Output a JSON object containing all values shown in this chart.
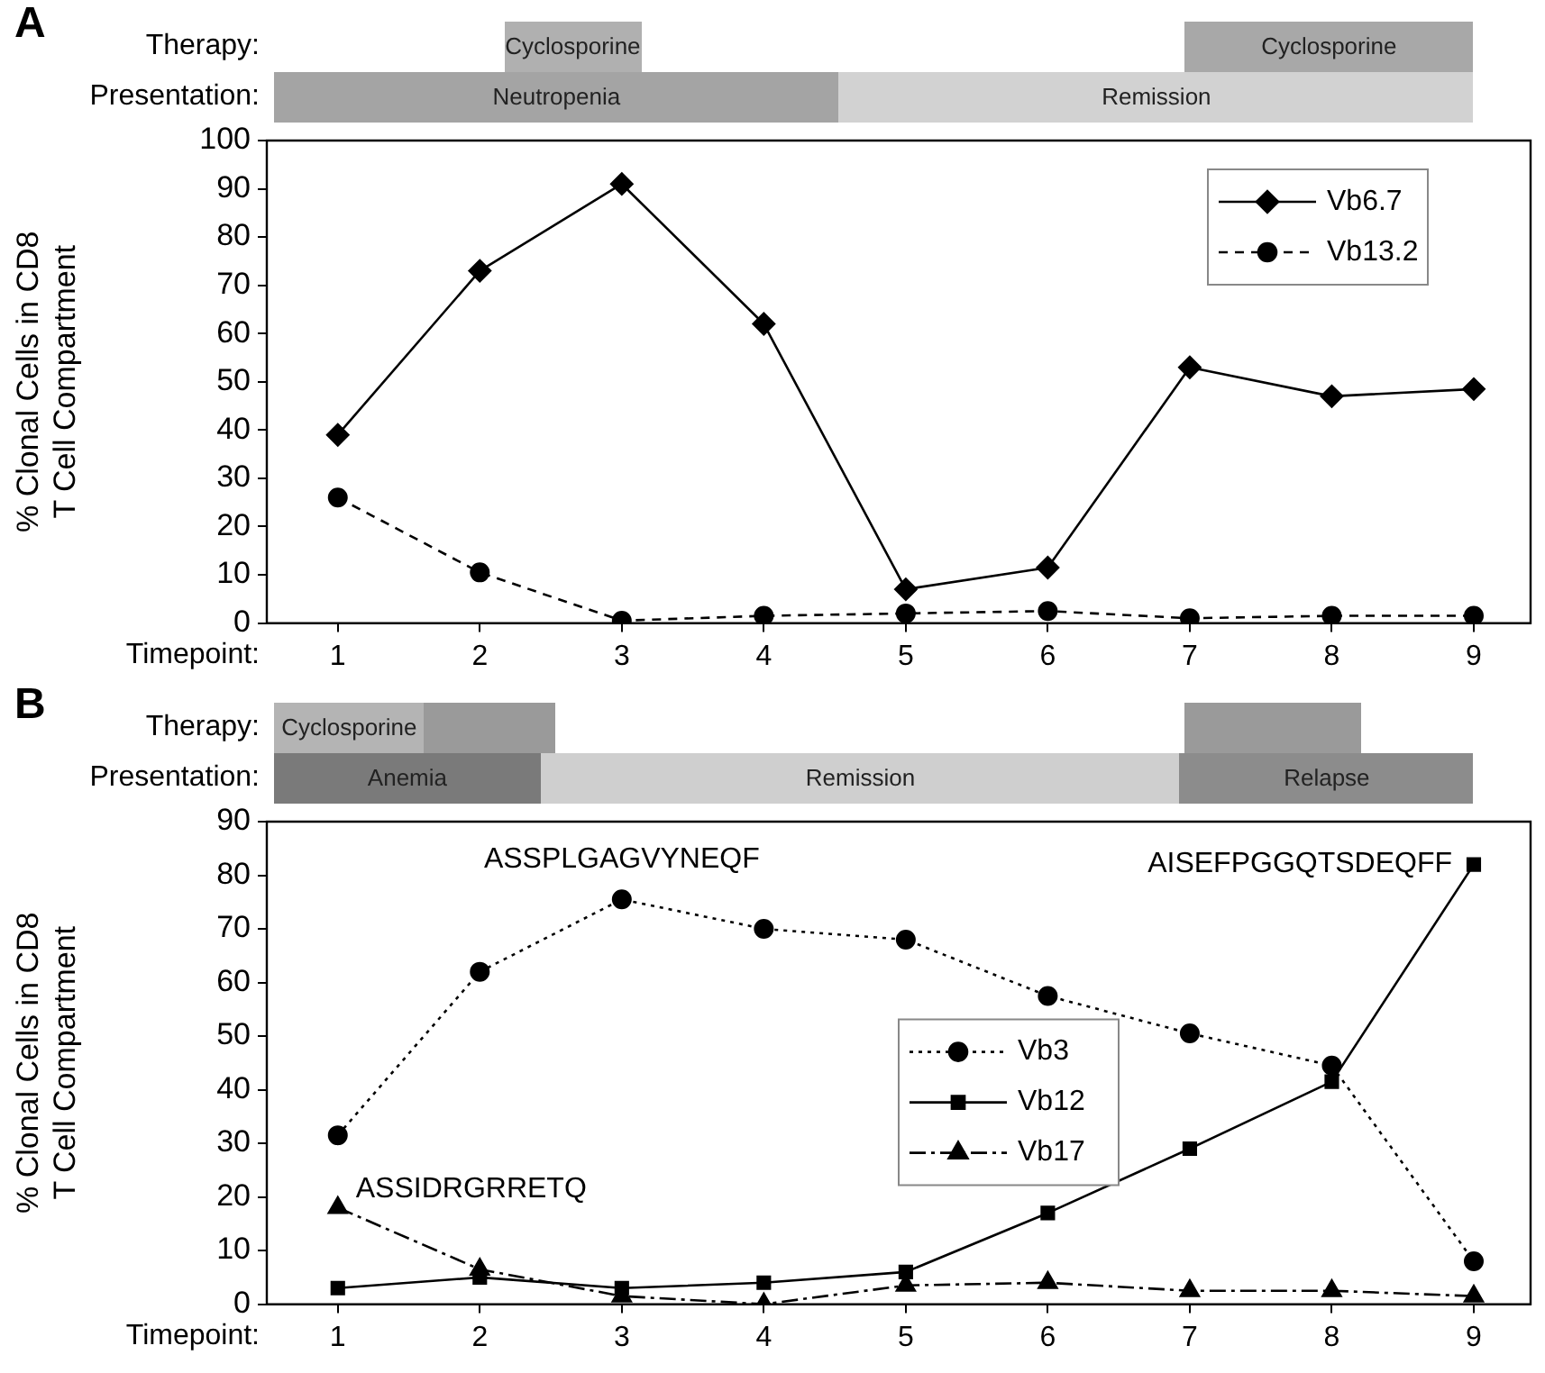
{
  "chart_data": [
    {
      "type": "line",
      "title": "A",
      "xlabel": "Timepoint:",
      "ylabel": "% Clonal Cells in CD8\nT Cell Compartment",
      "x": [
        1,
        2,
        3,
        4,
        5,
        6,
        7,
        8,
        9
      ],
      "xlim": [
        0.5,
        9.4
      ],
      "xticks": [
        1,
        2,
        3,
        4,
        5,
        6,
        7,
        8,
        9
      ],
      "ylim": [
        0,
        100
      ],
      "yticks": [
        0,
        10,
        20,
        30,
        40,
        50,
        60,
        70,
        80,
        90,
        100
      ],
      "grid": false,
      "legend": "top right",
      "series": [
        {
          "name": "Vb6.7",
          "color": "#000000",
          "marker": "diamond",
          "line_style": "solid",
          "values": [
            39,
            73,
            91,
            62,
            7,
            11.5,
            53,
            47,
            48.5
          ]
        },
        {
          "name": "Vb13.2",
          "color": "#000000",
          "marker": "circle",
          "line_style": "dashed",
          "values": [
            26,
            10.5,
            0.5,
            1.5,
            2,
            2.5,
            1,
            1.5,
            1.5
          ]
        }
      ],
      "annotations": [
        "Therapy:",
        "Presentation:",
        "Cyclosporine",
        "Cyclosporine",
        "Neutropenia",
        "Remission"
      ]
    },
    {
      "type": "line",
      "title": "B",
      "xlabel": "Timepoint:",
      "ylabel": "% Clonal Cells in CD8\nT Cell Compartment",
      "x": [
        1,
        2,
        3,
        4,
        5,
        6,
        7,
        8,
        9
      ],
      "xlim": [
        0.5,
        9.4
      ],
      "xticks": [
        1,
        2,
        3,
        4,
        5,
        6,
        7,
        8,
        9
      ],
      "ylim": [
        0,
        90
      ],
      "yticks": [
        0,
        10,
        20,
        30,
        40,
        50,
        60,
        70,
        80,
        90
      ],
      "grid": false,
      "legend": "right",
      "series": [
        {
          "name": "Vb3",
          "color": "#000000",
          "marker": "circle",
          "line_style": "dotted",
          "values": [
            31.5,
            62,
            75.5,
            70,
            68,
            57.5,
            50.5,
            44.5,
            8
          ]
        },
        {
          "name": "Vb12",
          "color": "#000000",
          "marker": "square",
          "line_style": "solid",
          "values": [
            3,
            5,
            3,
            4,
            6,
            17,
            29,
            41.5,
            82
          ]
        },
        {
          "name": "Vb17",
          "color": "#000000",
          "marker": "triangle",
          "line_style": "dashdot",
          "values": [
            18,
            6.5,
            1.5,
            0,
            3.5,
            4,
            2.5,
            2.5,
            1.5
          ]
        }
      ],
      "annotations": [
        "Therapy:",
        "Presentation:",
        {
          "text": "ASSPLGAGVYNEQF",
          "x": 3,
          "y": 75.5
        },
        {
          "text": "AISEFPGGQTSDEQFF",
          "x": 9,
          "y": 82
        },
        {
          "text": "ASSIDRGRRETQ",
          "x": 1,
          "y": 18
        },
        "Cyclosporine",
        "Anemia",
        "Remission",
        "Relapse"
      ]
    }
  ]
}
